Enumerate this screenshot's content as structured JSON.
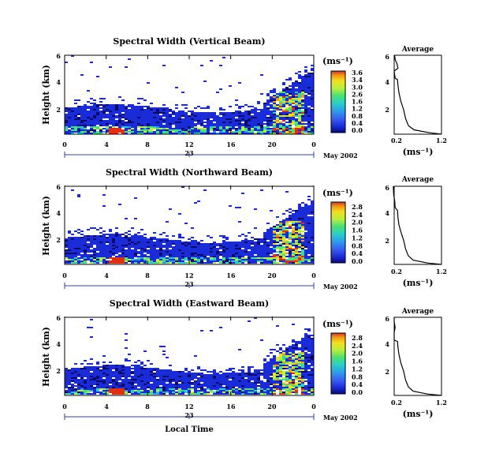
{
  "chart_data": {
    "type": "heatmap",
    "panels": [
      {
        "title": "Spectral Width (Vertical Beam)",
        "colorbar_ticks": [
          "3.6",
          "3.4",
          "3.0",
          "2.6",
          "1.6",
          "1.2",
          "0.8",
          "0.4",
          "0.0"
        ],
        "profile": [
          [
            1.2,
            0.5
          ],
          [
            0.95,
            0.6
          ],
          [
            0.62,
            0.8
          ],
          [
            0.5,
            1.1
          ],
          [
            0.44,
            1.6
          ],
          [
            0.4,
            2.2
          ],
          [
            0.34,
            2.8
          ],
          [
            0.3,
            3.4
          ],
          [
            0.28,
            3.9
          ],
          [
            0.27,
            4.3
          ],
          [
            0.22,
            4.4
          ],
          [
            0.2,
            4.9
          ],
          [
            0.28,
            5.1
          ],
          [
            0.26,
            5.4
          ],
          [
            0.22,
            5.7
          ],
          [
            0.21,
            6.0
          ]
        ]
      },
      {
        "title": "Spectral Width (Northward Beam)",
        "colorbar_ticks": [
          "2.8",
          "2.4",
          "2.0",
          "1.6",
          "1.2",
          "0.8",
          "0.4",
          "0.0"
        ],
        "profile": [
          [
            1.2,
            0.5
          ],
          [
            0.9,
            0.6
          ],
          [
            0.6,
            0.8
          ],
          [
            0.5,
            1.1
          ],
          [
            0.44,
            1.6
          ],
          [
            0.4,
            2.2
          ],
          [
            0.34,
            2.8
          ],
          [
            0.3,
            3.3
          ],
          [
            0.28,
            3.8
          ],
          [
            0.27,
            4.3
          ],
          [
            0.22,
            4.5
          ],
          [
            0.21,
            5.0
          ],
          [
            0.19,
            5.4
          ],
          [
            0.18,
            6.0
          ]
        ]
      },
      {
        "title": "Spectral Width (Eastward Beam)",
        "colorbar_ticks": [
          "2.8",
          "2.4",
          "2.0",
          "1.6",
          "1.2",
          "0.8",
          "0.4",
          "0.0"
        ],
        "profile": [
          [
            1.2,
            0.5
          ],
          [
            0.9,
            0.6
          ],
          [
            0.6,
            0.8
          ],
          [
            0.5,
            1.1
          ],
          [
            0.44,
            1.6
          ],
          [
            0.4,
            2.2
          ],
          [
            0.34,
            2.8
          ],
          [
            0.3,
            3.4
          ],
          [
            0.28,
            3.9
          ],
          [
            0.27,
            4.3
          ],
          [
            0.2,
            4.4
          ],
          [
            0.2,
            4.9
          ],
          [
            0.22,
            5.3
          ],
          [
            0.2,
            5.7
          ],
          [
            0.2,
            6.0
          ]
        ]
      }
    ],
    "ylabel": "Height (km)",
    "y_ticks": [
      "2",
      "4",
      "6"
    ],
    "ylim": [
      0.5,
      6
    ],
    "x_ticks": [
      "0",
      "4",
      "8",
      "12",
      "16",
      "20",
      "0"
    ],
    "xlim": [
      0,
      24
    ],
    "date_day": "23",
    "date_label": "May 2002",
    "xlabel": "Local Time",
    "colorbar_unit": "(ms⁻¹)",
    "profile_title": "Average",
    "profile_x_ticks": [
      "0.2",
      "1.2"
    ],
    "profile_xlim": [
      0.2,
      1.2
    ],
    "profile_xlabel": "(ms⁻¹)",
    "colormap": [
      "#0a0a6a",
      "#1a2bd8",
      "#3a5cf0",
      "#2e9af0",
      "#2ad0c8",
      "#48e078",
      "#b6f040",
      "#f0e020",
      "#f09a10",
      "#e03010"
    ]
  }
}
